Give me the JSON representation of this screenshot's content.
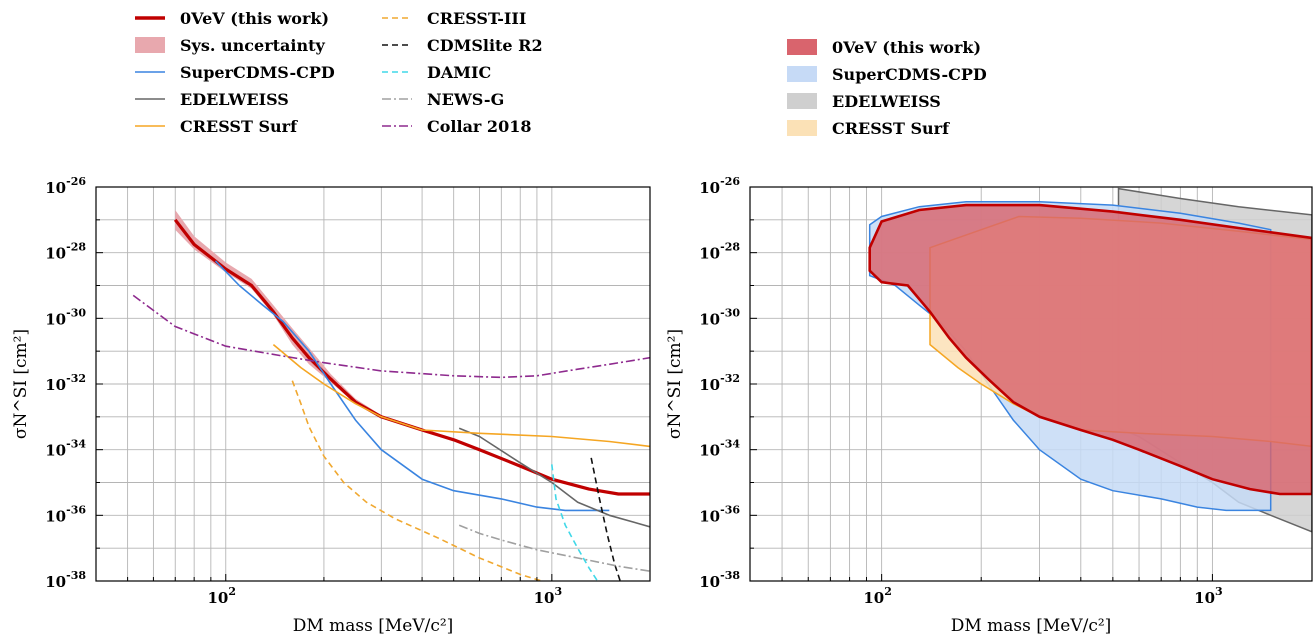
{
  "figure": {
    "legend_left": [
      {
        "label": "0VeV (this work)",
        "color": "#c00000",
        "style": "solid-thick"
      },
      {
        "label": "Sys. uncertainty",
        "color": "#e8a8ae",
        "style": "patch"
      },
      {
        "label": "SuperCDMS-CPD",
        "color": "#3a84e0",
        "style": "solid"
      },
      {
        "label": "EDELWEISS",
        "color": "#666666",
        "style": "solid"
      },
      {
        "label": "CRESST Surf",
        "color": "#f5a623",
        "style": "solid"
      },
      {
        "label": "CRESST-III",
        "color": "#f0a830",
        "style": "dashed"
      },
      {
        "label": "CDMSlite R2",
        "color": "#111111",
        "style": "dashed"
      },
      {
        "label": "DAMIC",
        "color": "#40d8e8",
        "style": "dashed"
      },
      {
        "label": "NEWS-G",
        "color": "#a0a0a0",
        "style": "dashdot"
      },
      {
        "label": "Collar 2018",
        "color": "#8e2a8e",
        "style": "dashdot"
      }
    ],
    "legend_right": [
      {
        "label": "0VeV (this work)",
        "color": "#d9646d"
      },
      {
        "label": "SuperCDMS-CPD",
        "color": "#c6daf6"
      },
      {
        "label": "EDELWEISS",
        "color": "#cfcfcf"
      },
      {
        "label": "CRESST Surf",
        "color": "#fbe1b6"
      }
    ]
  },
  "chart_data": [
    {
      "type": "line",
      "xlabel": "DM mass [MeV/c²]",
      "ylabel": "σN^SI [cm²]",
      "x_scale": "log",
      "y_scale": "log",
      "xlim": [
        40,
        2000
      ],
      "ylim": [
        1e-38,
        1e-26
      ],
      "grid": true,
      "legend_position": "top-left, above plot",
      "x_tick_labels": [
        {
          "base": "10",
          "exp": "2",
          "value": 100
        },
        {
          "base": "10",
          "exp": "3",
          "value": 1000
        }
      ],
      "y_tick_labels": [
        {
          "base": "10",
          "exp": "-26",
          "value": -26
        },
        {
          "base": "10",
          "exp": "-28",
          "value": -28
        },
        {
          "base": "10",
          "exp": "-30",
          "value": -30
        },
        {
          "base": "10",
          "exp": "-32",
          "value": -32
        },
        {
          "base": "10",
          "exp": "-34",
          "value": -34
        },
        {
          "base": "10",
          "exp": "-36",
          "value": -36
        },
        {
          "base": "10",
          "exp": "-38",
          "value": -38
        }
      ],
      "series": [
        {
          "name": "Sys. uncertainty",
          "kind": "band",
          "color": "#e8a8ae",
          "points": [
            [
              70,
              -26.7
            ],
            [
              80,
              -27.5
            ],
            [
              100,
              -28.3
            ],
            [
              120,
              -28.8
            ],
            [
              140,
              -29.6
            ],
            [
              160,
              -30.3
            ],
            [
              180,
              -30.9
            ],
            [
              210,
              -31.7
            ],
            [
              250,
              -32.45
            ],
            [
              300,
              -32.95
            ],
            [
              400,
              -33.35
            ]
          ],
          "lower": [
            [
              70,
              -27.3
            ],
            [
              80,
              -27.9
            ],
            [
              100,
              -28.6
            ],
            [
              120,
              -29.1
            ],
            [
              140,
              -29.9
            ],
            [
              160,
              -30.8
            ],
            [
              180,
              -31.4
            ],
            [
              210,
              -31.95
            ],
            [
              250,
              -32.6
            ],
            [
              300,
              -33.05
            ],
            [
              400,
              -33.4
            ]
          ]
        },
        {
          "name": "0VeV (this work)",
          "color": "#c00000",
          "width": 3.2,
          "dash": "",
          "points": [
            [
              70,
              -27.0
            ],
            [
              80,
              -27.75
            ],
            [
              100,
              -28.5
            ],
            [
              120,
              -29.0
            ],
            [
              140,
              -29.8
            ],
            [
              160,
              -30.6
            ],
            [
              180,
              -31.2
            ],
            [
              210,
              -31.85
            ],
            [
              250,
              -32.55
            ],
            [
              300,
              -33.0
            ],
            [
              400,
              -33.4
            ],
            [
              500,
              -33.7
            ],
            [
              600,
              -34.0
            ],
            [
              800,
              -34.5
            ],
            [
              1000,
              -34.9
            ],
            [
              1300,
              -35.2
            ],
            [
              1600,
              -35.35
            ],
            [
              2000,
              -35.35
            ]
          ]
        },
        {
          "name": "SuperCDMS-CPD",
          "color": "#3a84e0",
          "width": 1.6,
          "dash": "",
          "points": [
            [
              93,
              -28.25
            ],
            [
              110,
              -29.0
            ],
            [
              130,
              -29.6
            ],
            [
              150,
              -30.1
            ],
            [
              180,
              -31.0
            ],
            [
              210,
              -32.0
            ],
            [
              250,
              -33.1
            ],
            [
              300,
              -34.0
            ],
            [
              400,
              -34.9
            ],
            [
              500,
              -35.25
            ],
            [
              700,
              -35.5
            ],
            [
              900,
              -35.75
            ],
            [
              1100,
              -35.85
            ],
            [
              1500,
              -35.85
            ]
          ]
        },
        {
          "name": "EDELWEISS",
          "color": "#666666",
          "width": 1.6,
          "dash": "",
          "points": [
            [
              520,
              -33.35
            ],
            [
              600,
              -33.6
            ],
            [
              800,
              -34.4
            ],
            [
              1000,
              -35.0
            ],
            [
              1200,
              -35.6
            ],
            [
              1500,
              -36.0
            ],
            [
              2000,
              -36.35
            ]
          ]
        },
        {
          "name": "CRESST Surf",
          "color": "#f5a623",
          "width": 1.6,
          "dash": "",
          "points": [
            [
              140,
              -30.8
            ],
            [
              170,
              -31.5
            ],
            [
              200,
              -32.0
            ],
            [
              250,
              -32.6
            ],
            [
              300,
              -33.0
            ],
            [
              400,
              -33.4
            ],
            [
              600,
              -33.5
            ],
            [
              1000,
              -33.6
            ],
            [
              1500,
              -33.75
            ],
            [
              2000,
              -33.9
            ]
          ]
        },
        {
          "name": "CRESST-III",
          "color": "#f0a830",
          "width": 1.6,
          "dash": "6,4",
          "points": [
            [
              160,
              -31.9
            ],
            [
              170,
              -32.6
            ],
            [
              180,
              -33.3
            ],
            [
              200,
              -34.2
            ],
            [
              230,
              -35.0
            ],
            [
              270,
              -35.6
            ],
            [
              330,
              -36.1
            ],
            [
              450,
              -36.7
            ],
            [
              600,
              -37.3
            ],
            [
              800,
              -37.8
            ],
            [
              930,
              -38.0
            ]
          ]
        },
        {
          "name": "CDMSlite R2",
          "color": "#111111",
          "width": 1.6,
          "dash": "6,4",
          "points": [
            [
              1320,
              -34.25
            ],
            [
              1400,
              -35.5
            ],
            [
              1480,
              -36.6
            ],
            [
              1560,
              -37.5
            ],
            [
              1620,
              -38.0
            ]
          ]
        },
        {
          "name": "DAMIC",
          "color": "#40d8e8",
          "width": 1.6,
          "dash": "6,4",
          "points": [
            [
              1000,
              -34.45
            ],
            [
              1030,
              -35.5
            ],
            [
              1100,
              -36.3
            ],
            [
              1200,
              -37.0
            ],
            [
              1300,
              -37.6
            ],
            [
              1380,
              -38.0
            ]
          ]
        },
        {
          "name": "NEWS-G",
          "color": "#a0a0a0",
          "width": 1.6,
          "dash": "9,3,2,3",
          "points": [
            [
              520,
              -36.3
            ],
            [
              600,
              -36.55
            ],
            [
              700,
              -36.75
            ],
            [
              900,
              -37.05
            ],
            [
              1200,
              -37.3
            ],
            [
              1600,
              -37.55
            ],
            [
              2000,
              -37.7
            ]
          ]
        },
        {
          "name": "Collar 2018",
          "color": "#8e2a8e",
          "width": 1.6,
          "dash": "9,3,2,3",
          "points": [
            [
              52,
              -29.3
            ],
            [
              70,
              -30.25
            ],
            [
              100,
              -30.85
            ],
            [
              150,
              -31.15
            ],
            [
              200,
              -31.35
            ],
            [
              300,
              -31.6
            ],
            [
              500,
              -31.75
            ],
            [
              700,
              -31.8
            ],
            [
              900,
              -31.75
            ],
            [
              1200,
              -31.55
            ],
            [
              1500,
              -31.4
            ],
            [
              2000,
              -31.2
            ]
          ]
        }
      ]
    },
    {
      "type": "area",
      "xlabel": "DM mass [MeV/c²]",
      "ylabel": "σN^SI [cm²]",
      "x_scale": "log",
      "y_scale": "log",
      "xlim": [
        40,
        2000
      ],
      "ylim": [
        1e-38,
        1e-26
      ],
      "grid": true,
      "legend_position": "top, above plot",
      "x_tick_labels": [
        {
          "base": "10",
          "exp": "2",
          "value": 100
        },
        {
          "base": "10",
          "exp": "3",
          "value": 1000
        }
      ],
      "y_tick_labels": [
        {
          "base": "10",
          "exp": "-26",
          "value": -26
        },
        {
          "base": "10",
          "exp": "-28",
          "value": -28
        },
        {
          "base": "10",
          "exp": "-30",
          "value": -30
        },
        {
          "base": "10",
          "exp": "-32",
          "value": -32
        },
        {
          "base": "10",
          "exp": "-34",
          "value": -34
        },
        {
          "base": "10",
          "exp": "-36",
          "value": -36
        },
        {
          "base": "10",
          "exp": "-38",
          "value": -38
        }
      ],
      "regions": [
        {
          "name": "EDELWEISS",
          "fill": "#cfcfcf",
          "stroke": "#666666",
          "opacity": 0.85,
          "points": [
            [
              520,
              -26.05
            ],
            [
              800,
              -26.35
            ],
            [
              1200,
              -26.6
            ],
            [
              2000,
              -26.85
            ],
            [
              2000,
              -36.5
            ],
            [
              1500,
              -36.0
            ],
            [
              1200,
              -35.6
            ],
            [
              1000,
              -35.0
            ],
            [
              800,
              -34.4
            ],
            [
              600,
              -33.6
            ],
            [
              520,
              -33.35
            ]
          ]
        },
        {
          "name": "SuperCDMS-CPD",
          "fill": "#c6daf6",
          "stroke": "#3a84e0",
          "opacity": 0.85,
          "points": [
            [
              92,
              -27.15
            ],
            [
              100,
              -26.9
            ],
            [
              130,
              -26.6
            ],
            [
              180,
              -26.45
            ],
            [
              300,
              -26.45
            ],
            [
              500,
              -26.55
            ],
            [
              800,
              -26.8
            ],
            [
              1200,
              -27.1
            ],
            [
              1500,
              -27.3
            ],
            [
              1500,
              -35.85
            ],
            [
              1100,
              -35.85
            ],
            [
              900,
              -35.75
            ],
            [
              700,
              -35.5
            ],
            [
              500,
              -35.25
            ],
            [
              400,
              -34.9
            ],
            [
              300,
              -34.0
            ],
            [
              250,
              -33.1
            ],
            [
              210,
              -32.0
            ],
            [
              180,
              -31.0
            ],
            [
              150,
              -30.1
            ],
            [
              130,
              -29.6
            ],
            [
              110,
              -29.0
            ],
            [
              92,
              -28.7
            ]
          ]
        },
        {
          "name": "CRESST Surf",
          "fill": "#fbe1b6",
          "stroke": "#f5a623",
          "opacity": 0.85,
          "points": [
            [
              140,
              -27.85
            ],
            [
              200,
              -27.3
            ],
            [
              260,
              -26.9
            ],
            [
              400,
              -26.95
            ],
            [
              700,
              -27.1
            ],
            [
              1200,
              -27.35
            ],
            [
              2000,
              -27.6
            ],
            [
              2000,
              -33.9
            ],
            [
              1500,
              -33.75
            ],
            [
              1000,
              -33.6
            ],
            [
              600,
              -33.5
            ],
            [
              400,
              -33.4
            ],
            [
              300,
              -33.0
            ],
            [
              250,
              -32.6
            ],
            [
              200,
              -32.0
            ],
            [
              170,
              -31.5
            ],
            [
              140,
              -30.8
            ]
          ]
        },
        {
          "name": "0VeV (this work)",
          "fill": "#d9646d",
          "stroke": "#c00000",
          "opacity": 0.82,
          "points": [
            [
              92,
              -27.85
            ],
            [
              100,
              -27.05
            ],
            [
              130,
              -26.7
            ],
            [
              180,
              -26.55
            ],
            [
              300,
              -26.55
            ],
            [
              500,
              -26.75
            ],
            [
              800,
              -27.0
            ],
            [
              1200,
              -27.25
            ],
            [
              2000,
              -27.55
            ],
            [
              2000,
              -35.35
            ],
            [
              1600,
              -35.35
            ],
            [
              1300,
              -35.2
            ],
            [
              1000,
              -34.9
            ],
            [
              800,
              -34.5
            ],
            [
              600,
              -34.0
            ],
            [
              500,
              -33.7
            ],
            [
              400,
              -33.4
            ],
            [
              300,
              -33.0
            ],
            [
              250,
              -32.55
            ],
            [
              210,
              -31.85
            ],
            [
              180,
              -31.2
            ],
            [
              160,
              -30.6
            ],
            [
              140,
              -29.8
            ],
            [
              120,
              -29.0
            ],
            [
              100,
              -28.9
            ],
            [
              92,
              -28.55
            ]
          ]
        }
      ]
    }
  ]
}
